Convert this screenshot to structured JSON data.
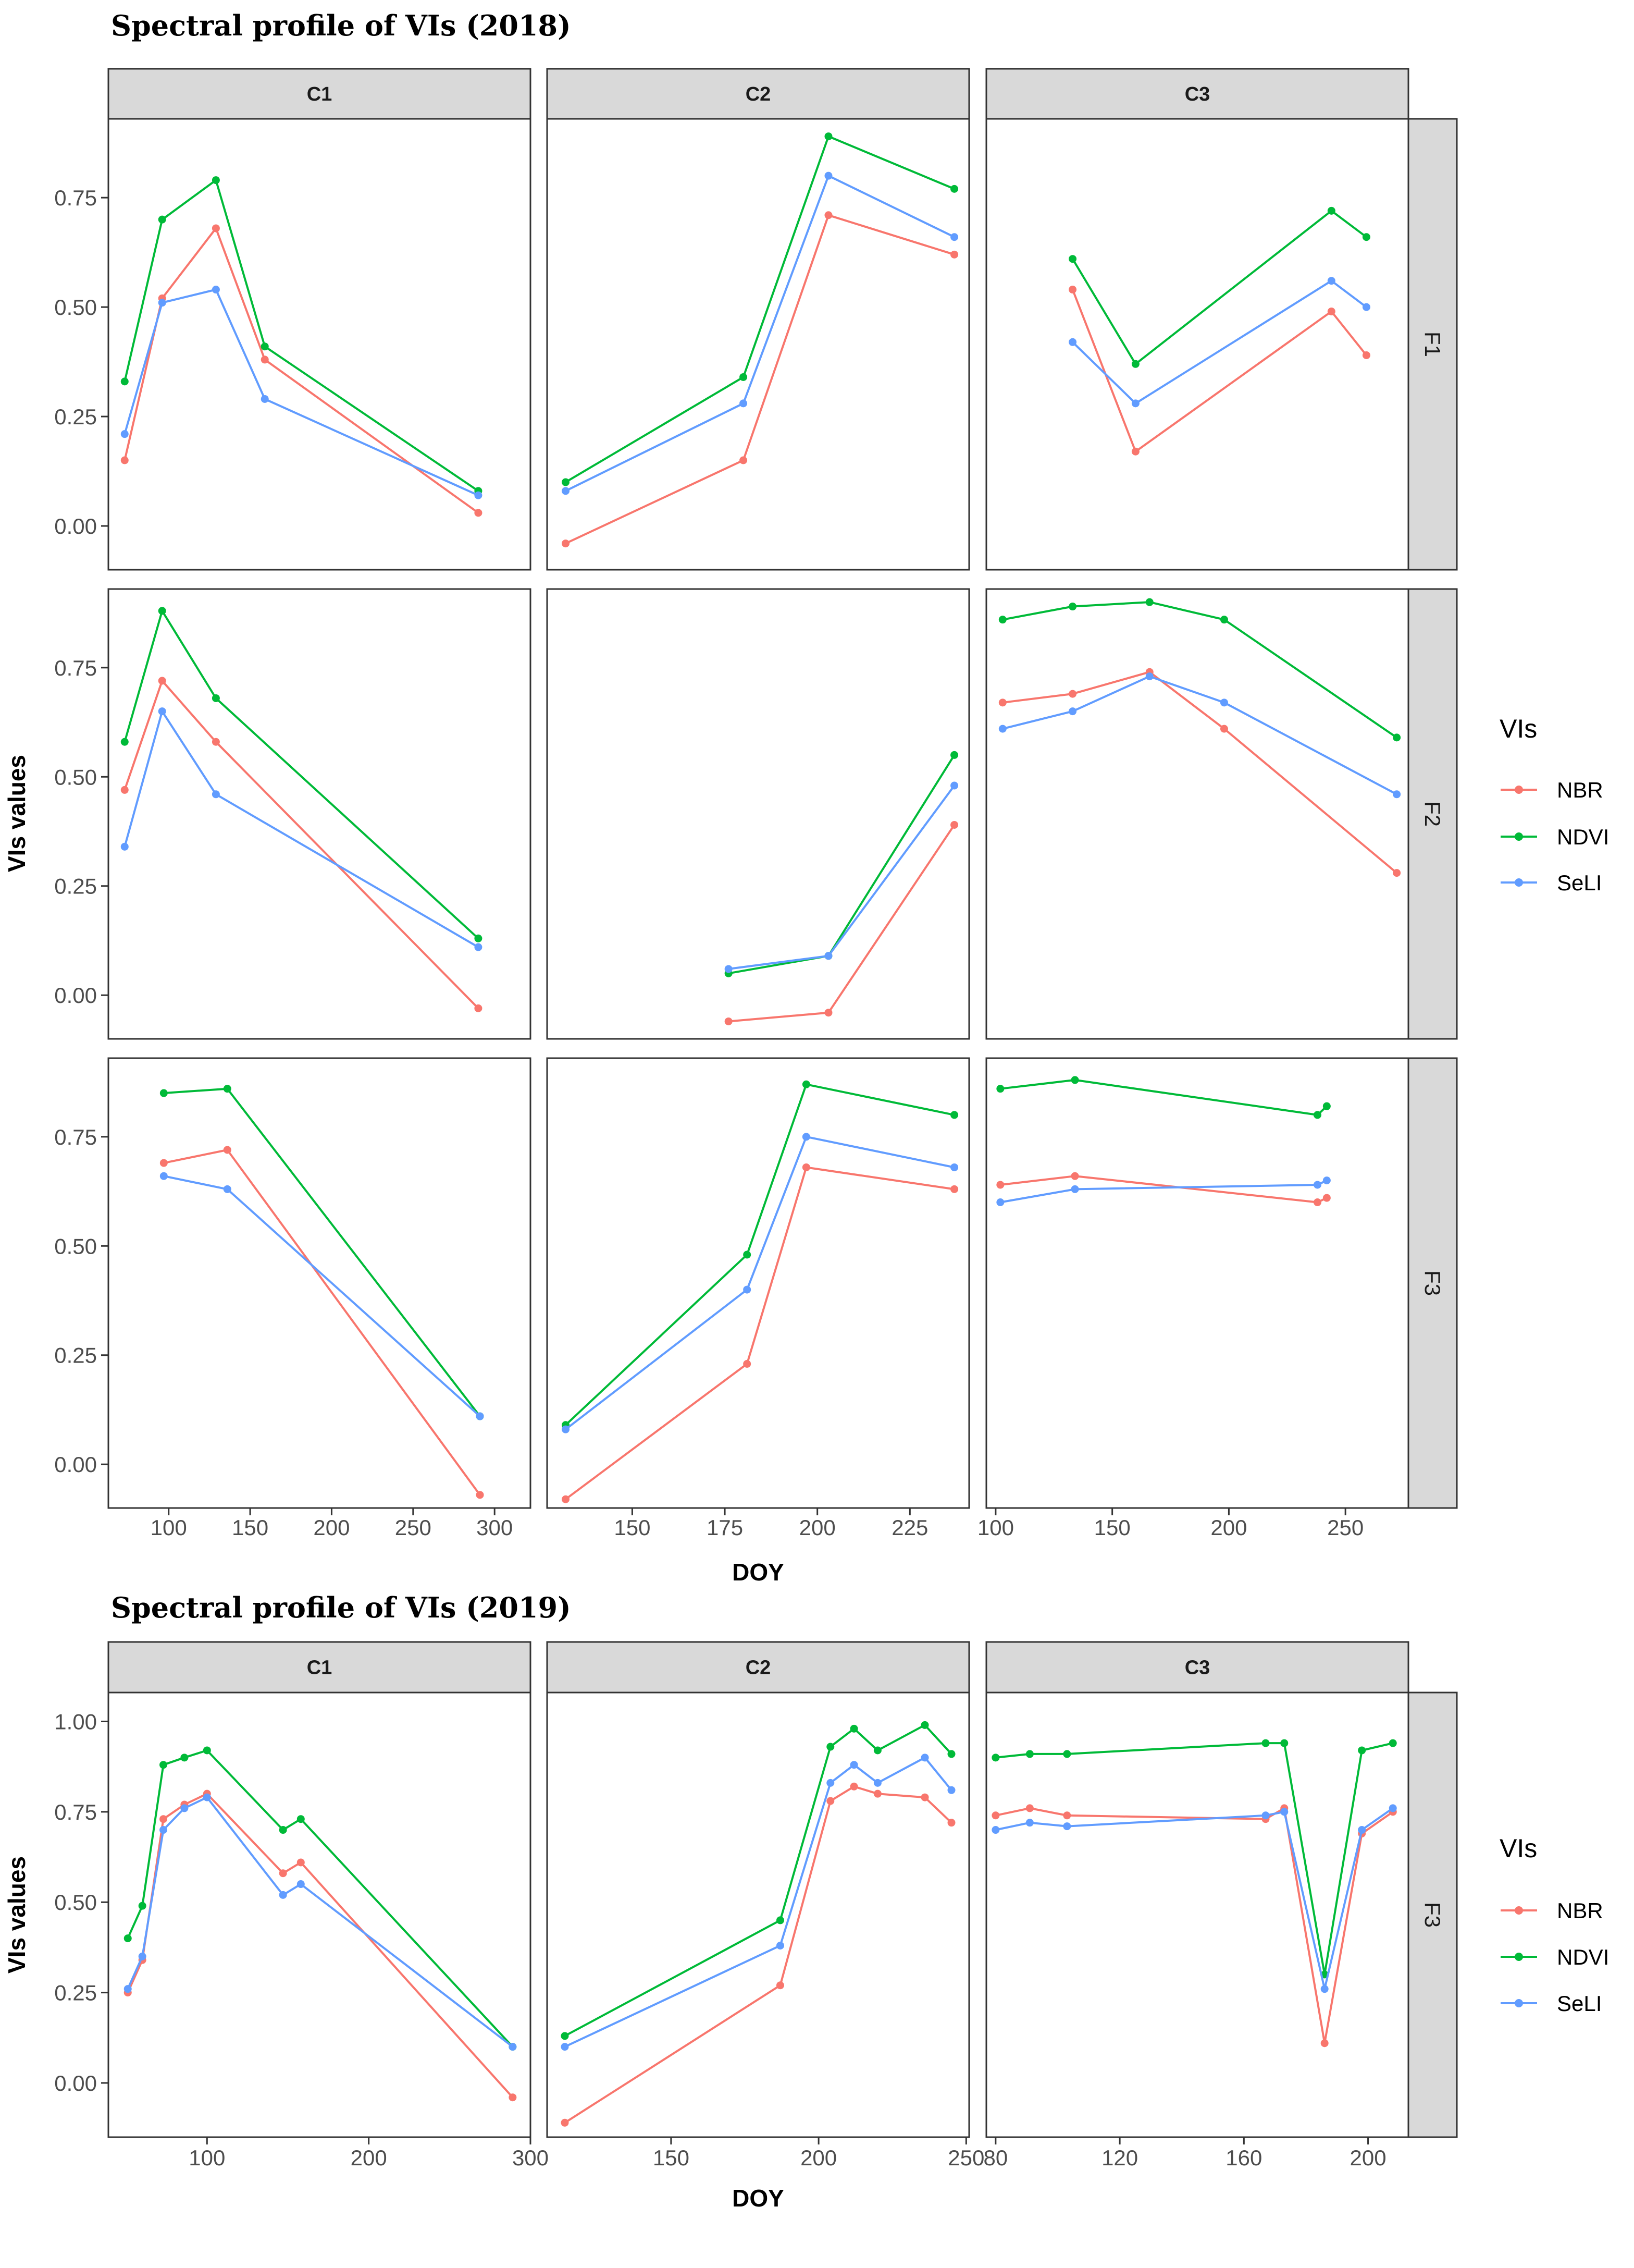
{
  "colors": {
    "NBR": "#F8766D",
    "NDVI": "#00BA38",
    "SeLI": "#619CFF",
    "strip": "#d9d9d9",
    "panel_border": "#333333"
  },
  "chart_data": [
    {
      "type": "line",
      "title": "Spectral profile of VIs (2018)",
      "xlabel": "DOY",
      "ylabel": "VIs values",
      "legend_title": "VIs",
      "legend_entries": [
        "NBR",
        "NDVI",
        "SeLI"
      ],
      "legend_placement": "right",
      "col_facets": [
        "C1",
        "C2",
        "C3"
      ],
      "row_facets": [
        "F1",
        "F2",
        "F3"
      ],
      "ylim": [
        -0.1,
        0.93
      ],
      "y_ticks": [
        0.0,
        0.25,
        0.5,
        0.75
      ],
      "y_tick_labels": [
        "0.00",
        "0.25",
        "0.50",
        "0.75"
      ],
      "x_axes": [
        {
          "xlim": [
            63,
            322
          ],
          "ticks": [
            100,
            150,
            200,
            250,
            300
          ],
          "labels": [
            "100",
            "150",
            "200",
            "250",
            "300"
          ]
        },
        {
          "xlim": [
            127,
            241
          ],
          "ticks": [
            150,
            175,
            200,
            225
          ],
          "labels": [
            "150",
            "175",
            "200",
            "225"
          ]
        },
        {
          "xlim": [
            96,
            277
          ],
          "ticks": [
            100,
            150,
            200,
            250
          ],
          "labels": [
            "100",
            "150",
            "200",
            "250"
          ]
        }
      ],
      "panels": [
        {
          "col": 0,
          "row": 0,
          "series": [
            {
              "name": "NBR",
              "x": [
                73,
                96,
                129,
                159,
                290
              ],
              "y": [
                0.15,
                0.52,
                0.68,
                0.38,
                0.03
              ]
            },
            {
              "name": "NDVI",
              "x": [
                73,
                96,
                129,
                159,
                290
              ],
              "y": [
                0.33,
                0.7,
                0.79,
                0.41,
                0.08
              ]
            },
            {
              "name": "SeLI",
              "x": [
                73,
                96,
                129,
                159,
                290
              ],
              "y": [
                0.21,
                0.51,
                0.54,
                0.29,
                0.07
              ]
            }
          ]
        },
        {
          "col": 1,
          "row": 0,
          "series": [
            {
              "name": "NBR",
              "x": [
                132,
                180,
                203,
                237
              ],
              "y": [
                -0.04,
                0.15,
                0.71,
                0.62
              ]
            },
            {
              "name": "NDVI",
              "x": [
                132,
                180,
                203,
                237
              ],
              "y": [
                0.1,
                0.34,
                0.89,
                0.77
              ]
            },
            {
              "name": "SeLI",
              "x": [
                132,
                180,
                203,
                237
              ],
              "y": [
                0.08,
                0.28,
                0.8,
                0.66
              ]
            }
          ]
        },
        {
          "col": 2,
          "row": 0,
          "series": [
            {
              "name": "NBR",
              "x": [
                133,
                160,
                244,
                259
              ],
              "y": [
                0.54,
                0.17,
                0.49,
                0.39
              ]
            },
            {
              "name": "NDVI",
              "x": [
                133,
                160,
                244,
                259
              ],
              "y": [
                0.61,
                0.37,
                0.72,
                0.66
              ]
            },
            {
              "name": "SeLI",
              "x": [
                133,
                160,
                244,
                259
              ],
              "y": [
                0.42,
                0.28,
                0.56,
                0.5
              ]
            }
          ]
        },
        {
          "col": 0,
          "row": 1,
          "series": [
            {
              "name": "NBR",
              "x": [
                73,
                96,
                129,
                290
              ],
              "y": [
                0.47,
                0.72,
                0.58,
                -0.03
              ]
            },
            {
              "name": "NDVI",
              "x": [
                73,
                96,
                129,
                290
              ],
              "y": [
                0.58,
                0.88,
                0.68,
                0.13
              ]
            },
            {
              "name": "SeLI",
              "x": [
                73,
                96,
                129,
                290
              ],
              "y": [
                0.34,
                0.65,
                0.46,
                0.11
              ]
            }
          ]
        },
        {
          "col": 1,
          "row": 1,
          "series": [
            {
              "name": "NBR",
              "x": [
                176,
                203,
                237
              ],
              "y": [
                -0.06,
                -0.04,
                0.39
              ]
            },
            {
              "name": "NDVI",
              "x": [
                176,
                203,
                237
              ],
              "y": [
                0.05,
                0.09,
                0.55
              ]
            },
            {
              "name": "SeLI",
              "x": [
                176,
                203,
                237
              ],
              "y": [
                0.06,
                0.09,
                0.48
              ]
            }
          ]
        },
        {
          "col": 2,
          "row": 1,
          "series": [
            {
              "name": "NBR",
              "x": [
                103,
                133,
                166,
                198,
                272
              ],
              "y": [
                0.67,
                0.69,
                0.74,
                0.61,
                0.28
              ]
            },
            {
              "name": "NDVI",
              "x": [
                103,
                133,
                166,
                198,
                272
              ],
              "y": [
                0.86,
                0.89,
                0.9,
                0.86,
                0.59
              ]
            },
            {
              "name": "SeLI",
              "x": [
                103,
                133,
                166,
                198,
                272
              ],
              "y": [
                0.61,
                0.65,
                0.73,
                0.67,
                0.46
              ]
            }
          ]
        },
        {
          "col": 0,
          "row": 2,
          "series": [
            {
              "name": "NBR",
              "x": [
                97,
                136,
                291
              ],
              "y": [
                0.69,
                0.72,
                -0.07
              ]
            },
            {
              "name": "NDVI",
              "x": [
                97,
                136,
                291
              ],
              "y": [
                0.85,
                0.86,
                0.11
              ]
            },
            {
              "name": "SeLI",
              "x": [
                97,
                136,
                291
              ],
              "y": [
                0.66,
                0.63,
                0.11
              ]
            }
          ]
        },
        {
          "col": 1,
          "row": 2,
          "series": [
            {
              "name": "NBR",
              "x": [
                132,
                181,
                197,
                237
              ],
              "y": [
                -0.08,
                0.23,
                0.68,
                0.63
              ]
            },
            {
              "name": "NDVI",
              "x": [
                132,
                181,
                197,
                237
              ],
              "y": [
                0.09,
                0.48,
                0.87,
                0.8
              ]
            },
            {
              "name": "SeLI",
              "x": [
                132,
                181,
                197,
                237
              ],
              "y": [
                0.08,
                0.4,
                0.75,
                0.68
              ]
            }
          ]
        },
        {
          "col": 2,
          "row": 2,
          "series": [
            {
              "name": "NBR",
              "x": [
                102,
                134,
                238,
                242
              ],
              "y": [
                0.64,
                0.66,
                0.6,
                0.61
              ]
            },
            {
              "name": "NDVI",
              "x": [
                102,
                134,
                238,
                242
              ],
              "y": [
                0.86,
                0.88,
                0.8,
                0.82
              ]
            },
            {
              "name": "SeLI",
              "x": [
                102,
                134,
                238,
                242
              ],
              "y": [
                0.6,
                0.63,
                0.64,
                0.65
              ]
            }
          ]
        }
      ]
    },
    {
      "type": "line",
      "title": "Spectral profile of VIs (2019)",
      "xlabel": "DOY",
      "ylabel": "VIs values",
      "legend_title": "VIs",
      "legend_entries": [
        "NBR",
        "NDVI",
        "SeLI"
      ],
      "legend_placement": "right",
      "col_facets": [
        "C1",
        "C2",
        "C3"
      ],
      "row_facets": [
        "F3"
      ],
      "ylim": [
        -0.15,
        1.08
      ],
      "y_ticks": [
        0.0,
        0.25,
        0.5,
        0.75,
        1.0
      ],
      "y_tick_labels": [
        "0.00",
        "0.25",
        "0.50",
        "0.75",
        "1.00"
      ],
      "x_axes": [
        {
          "xlim": [
            39,
            300
          ],
          "ticks": [
            100,
            200,
            300
          ],
          "labels": [
            "100",
            "200",
            "300"
          ]
        },
        {
          "xlim": [
            108,
            251
          ],
          "ticks": [
            150,
            200,
            250
          ],
          "labels": [
            "150",
            "200",
            "250"
          ]
        },
        {
          "xlim": [
            77,
            213
          ],
          "ticks": [
            80,
            120,
            160,
            200
          ],
          "labels": [
            "80",
            "120",
            "160",
            "200"
          ]
        }
      ],
      "panels": [
        {
          "col": 0,
          "row": 0,
          "series": [
            {
              "name": "NBR",
              "x": [
                51,
                60,
                73,
                86,
                100,
                147,
                158,
                289
              ],
              "y": [
                0.25,
                0.34,
                0.73,
                0.77,
                0.8,
                0.58,
                0.61,
                -0.04
              ]
            },
            {
              "name": "NDVI",
              "x": [
                51,
                60,
                73,
                86,
                100,
                147,
                158,
                289
              ],
              "y": [
                0.4,
                0.49,
                0.88,
                0.9,
                0.92,
                0.7,
                0.73,
                0.1
              ]
            },
            {
              "name": "SeLI",
              "x": [
                51,
                60,
                73,
                86,
                100,
                147,
                158,
                289
              ],
              "y": [
                0.26,
                0.35,
                0.7,
                0.76,
                0.79,
                0.52,
                0.55,
                0.1
              ]
            }
          ]
        },
        {
          "col": 1,
          "row": 0,
          "series": [
            {
              "name": "NBR",
              "x": [
                114,
                187,
                204,
                212,
                220,
                236,
                245
              ],
              "y": [
                -0.11,
                0.27,
                0.78,
                0.82,
                0.8,
                0.79,
                0.72
              ]
            },
            {
              "name": "NDVI",
              "x": [
                114,
                187,
                204,
                212,
                220,
                236,
                245
              ],
              "y": [
                0.13,
                0.45,
                0.93,
                0.98,
                0.92,
                0.99,
                0.91
              ]
            },
            {
              "name": "SeLI",
              "x": [
                114,
                187,
                204,
                212,
                220,
                236,
                245
              ],
              "y": [
                0.1,
                0.38,
                0.83,
                0.88,
                0.83,
                0.9,
                0.81
              ]
            }
          ]
        },
        {
          "col": 2,
          "row": 0,
          "series": [
            {
              "name": "NBR",
              "x": [
                80,
                91,
                103,
                167,
                173,
                186,
                198,
                208
              ],
              "y": [
                0.74,
                0.76,
                0.74,
                0.73,
                0.76,
                0.11,
                0.69,
                0.75
              ]
            },
            {
              "name": "NDVI",
              "x": [
                80,
                91,
                103,
                167,
                173,
                186,
                198,
                208
              ],
              "y": [
                0.9,
                0.91,
                0.91,
                0.94,
                0.94,
                0.3,
                0.92,
                0.94
              ]
            },
            {
              "name": "SeLI",
              "x": [
                80,
                91,
                103,
                167,
                173,
                186,
                198,
                208
              ],
              "y": [
                0.7,
                0.72,
                0.71,
                0.74,
                0.75,
                0.26,
                0.7,
                0.76
              ]
            }
          ]
        }
      ]
    }
  ]
}
